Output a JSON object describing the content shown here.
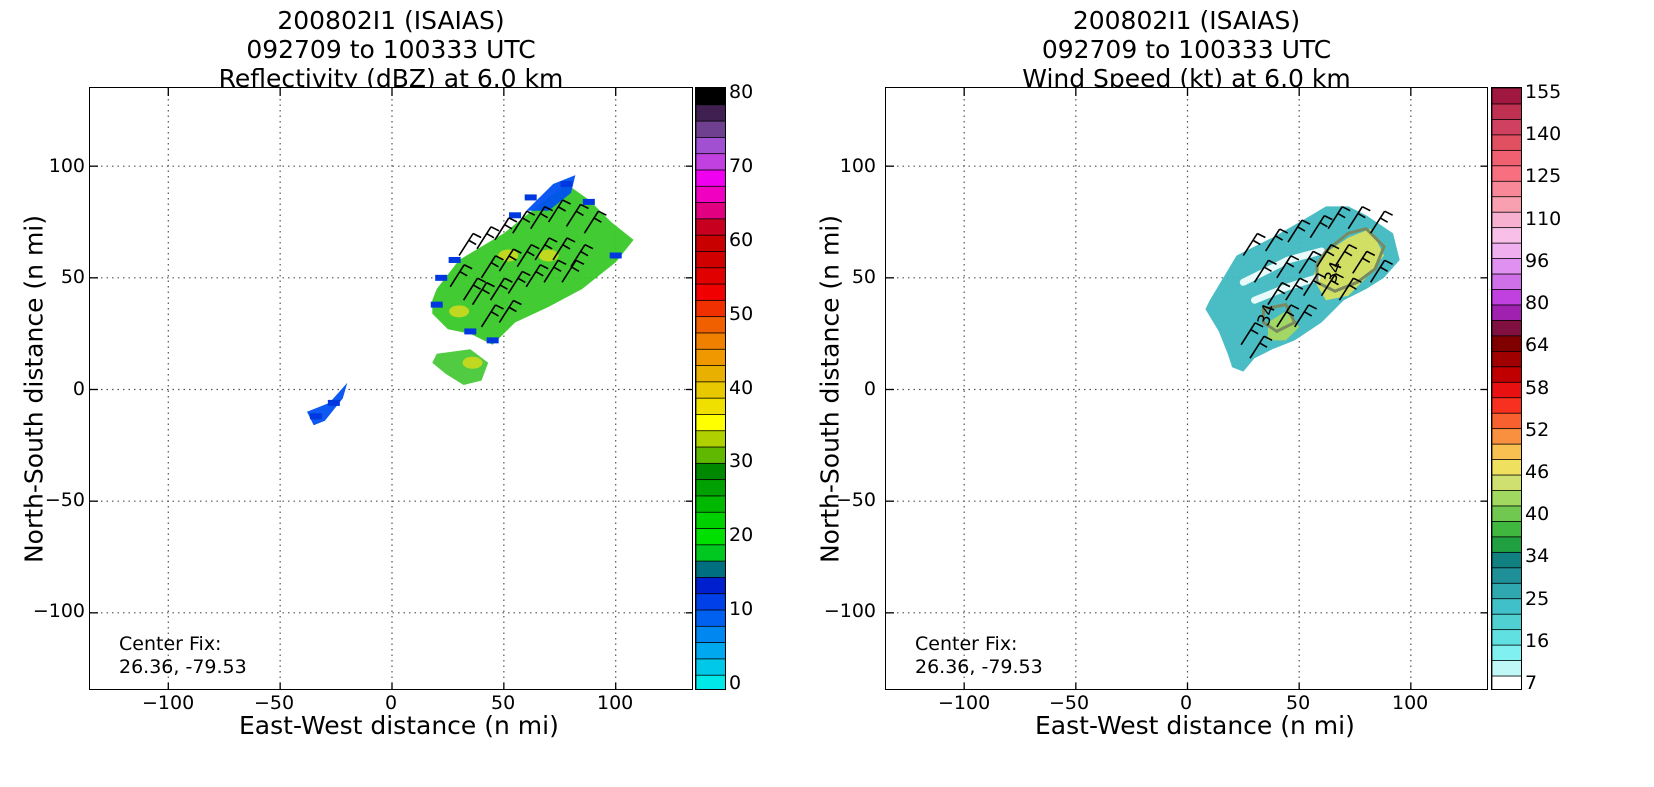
{
  "panels": [
    {
      "title_line1": "200802I1 (ISAIAS)",
      "title_line2": "092709 to 100333 UTC",
      "title_line3": "Reflectivity (dBZ) at 6.0 km",
      "xlabel": "East-West distance (n mi)",
      "ylabel": "North-South distance (n mi)",
      "center_fix_label": "Center Fix:",
      "center_fix_coords": "26.36, -79.53",
      "colorbar_ticks": [
        "0",
        "10",
        "20",
        "30",
        "40",
        "50",
        "60",
        "70",
        "80"
      ],
      "colorbar_colors": [
        "#00e8e8",
        "#00c8e8",
        "#00a8f0",
        "#0088f0",
        "#0060f0",
        "#0040e8",
        "#0020d0",
        "#007080",
        "#00c820",
        "#00e000",
        "#00d000",
        "#00b800",
        "#00a000",
        "#008800",
        "#60b800",
        "#b0d000",
        "#ffff00",
        "#f0e000",
        "#e8c800",
        "#e8b000",
        "#f09800",
        "#f08000",
        "#f06000",
        "#f03000",
        "#f00000",
        "#e00000",
        "#d00000",
        "#c80000",
        "#c80020",
        "#e00080",
        "#f000c0",
        "#f000f0",
        "#c040e0",
        "#a050d0",
        "#704090",
        "#402050",
        "#000000"
      ]
    },
    {
      "title_line1": "200802I1 (ISAIAS)",
      "title_line2": "092709 to 100333 UTC",
      "title_line3": "Wind Speed (kt) at 6.0 km",
      "xlabel": "East-West distance (n mi)",
      "ylabel": "North-South distance (n mi)",
      "center_fix_label": "Center Fix:",
      "center_fix_coords": "26.36, -79.53",
      "colorbar_ticks": [
        "7",
        "16",
        "25",
        "34",
        "40",
        "46",
        "52",
        "58",
        "64",
        "80",
        "96",
        "110",
        "125",
        "140",
        "155"
      ],
      "colorbar_colors": [
        "#ffffff",
        "#c0f8f8",
        "#80f0f0",
        "#60e0e0",
        "#50d0d0",
        "#40c0c8",
        "#30a8b0",
        "#209098",
        "#108080",
        "#20a040",
        "#40b840",
        "#70c850",
        "#a0d860",
        "#d0e070",
        "#f0e060",
        "#f8c050",
        "#f89040",
        "#f86030",
        "#f83020",
        "#e81010",
        "#c00000",
        "#a00000",
        "#800000",
        "#801040",
        "#a020b0",
        "#c040e0",
        "#d070e8",
        "#e090f0",
        "#f0b0f0",
        "#f8c0e8",
        "#f8b0d0",
        "#f8a0b0",
        "#f88898",
        "#f87080",
        "#f06070",
        "#e05060",
        "#d04060",
        "#c03050",
        "#a01840"
      ],
      "contour_labels": [
        "34",
        "34"
      ]
    }
  ],
  "x_ticks": [
    "−100",
    "−50",
    "0",
    "50",
    "100"
  ],
  "y_ticks": [
    "100",
    "50",
    "0",
    "−50",
    "−100"
  ],
  "chart_data": [
    {
      "type": "heatmap",
      "title": "200802I1 (ISAIAS) 092709 to 100333 UTC Reflectivity (dBZ) at 6.0 km",
      "xlabel": "East-West distance (n mi)",
      "ylabel": "North-South distance (n mi)",
      "xlim": [
        -135,
        135
      ],
      "ylim": [
        -135,
        135
      ],
      "grid": true,
      "colorbar": {
        "label": "dBZ",
        "range": [
          0,
          80
        ],
        "ticks": [
          0,
          10,
          20,
          30,
          40,
          50,
          60,
          70,
          80
        ]
      },
      "regions": [
        {
          "name": "main echo",
          "polygon": [
            [
              20,
              45
            ],
            [
              30,
              58
            ],
            [
              50,
              70
            ],
            [
              65,
              82
            ],
            [
              78,
              92
            ],
            [
              88,
              85
            ],
            [
              98,
              75
            ],
            [
              108,
              67
            ],
            [
              100,
              57
            ],
            [
              85,
              45
            ],
            [
              70,
              37
            ],
            [
              55,
              30
            ],
            [
              45,
              20
            ],
            [
              35,
              25
            ],
            [
              25,
              27
            ],
            [
              18,
              34
            ],
            [
              18,
              40
            ]
          ],
          "value_dbz": 22
        },
        {
          "name": "southern cell",
          "polygon": [
            [
              20,
              16
            ],
            [
              35,
              18
            ],
            [
              43,
              12
            ],
            [
              40,
              4
            ],
            [
              32,
              2
            ],
            [
              24,
              7
            ],
            [
              18,
              12
            ]
          ],
          "value_dbz": 24
        },
        {
          "name": "small western echo",
          "polygon": [
            [
              -38,
              -10
            ],
            [
              -28,
              -6
            ],
            [
              -20,
              3
            ],
            [
              -22,
              -4
            ],
            [
              -30,
              -14
            ],
            [
              -35,
              -16
            ]
          ],
          "value_dbz": 12
        },
        {
          "name": "northern fringe",
          "polygon": [
            [
              60,
              80
            ],
            [
              72,
              92
            ],
            [
              82,
              96
            ],
            [
              80,
              88
            ],
            [
              70,
              80
            ]
          ],
          "value_dbz": 12
        }
      ],
      "wind_barbs": [
        [
          30,
          60
        ],
        [
          38,
          63
        ],
        [
          46,
          67
        ],
        [
          54,
          70
        ],
        [
          62,
          72
        ],
        [
          70,
          75
        ],
        [
          78,
          73
        ],
        [
          86,
          70
        ],
        [
          40,
          50
        ],
        [
          48,
          53
        ],
        [
          56,
          55
        ],
        [
          64,
          58
        ],
        [
          72,
          58
        ],
        [
          80,
          55
        ],
        [
          36,
          38
        ],
        [
          44,
          40
        ],
        [
          52,
          43
        ],
        [
          60,
          46
        ],
        [
          68,
          48
        ],
        [
          76,
          48
        ],
        [
          40,
          28
        ],
        [
          48,
          30
        ],
        [
          26,
          46
        ],
        [
          32,
          40
        ]
      ],
      "annotations": [
        "Center Fix:",
        "26.36, -79.53"
      ]
    },
    {
      "type": "heatmap",
      "title": "200802I1 (ISAIAS) 092709 to 100333 UTC Wind Speed (kt) at 6.0 km",
      "xlabel": "East-West distance (n mi)",
      "ylabel": "North-South distance (n mi)",
      "xlim": [
        -135,
        135
      ],
      "ylim": [
        -135,
        135
      ],
      "grid": true,
      "colorbar": {
        "label": "kt",
        "range": [
          7,
          160
        ],
        "ticks": [
          7,
          16,
          25,
          34,
          40,
          46,
          52,
          58,
          64,
          80,
          96,
          110,
          125,
          140,
          155
        ]
      },
      "regions": [
        {
          "name": "wind field",
          "polygon": [
            [
              10,
              40
            ],
            [
              22,
              60
            ],
            [
              38,
              68
            ],
            [
              52,
              76
            ],
            [
              62,
              82
            ],
            [
              72,
              82
            ],
            [
              80,
              78
            ],
            [
              92,
              70
            ],
            [
              95,
              58
            ],
            [
              88,
              50
            ],
            [
              80,
              45
            ],
            [
              70,
              40
            ],
            [
              60,
              30
            ],
            [
              48,
              22
            ],
            [
              38,
              18
            ],
            [
              30,
              14
            ],
            [
              25,
              8
            ],
            [
              20,
              10
            ],
            [
              18,
              16
            ],
            [
              14,
              26
            ],
            [
              8,
              36
            ]
          ],
          "value_kt": 22
        },
        {
          "name": "strong winds",
          "polygon": [
            [
              60,
              60
            ],
            [
              72,
              68
            ],
            [
              82,
              72
            ],
            [
              88,
              60
            ],
            [
              80,
              50
            ],
            [
              72,
              42
            ],
            [
              62,
              40
            ],
            [
              56,
              50
            ]
          ],
          "value_kt": 42
        },
        {
          "name": "southern strong winds",
          "polygon": [
            [
              36,
              30
            ],
            [
              44,
              35
            ],
            [
              50,
              28
            ],
            [
              44,
              22
            ],
            [
              36,
              22
            ]
          ],
          "value_kt": 40
        }
      ],
      "contours": [
        {
          "level_kt": 34,
          "labels": [
            "34",
            "34"
          ]
        }
      ],
      "wind_barbs": [
        [
          25,
          60
        ],
        [
          35,
          62
        ],
        [
          45,
          66
        ],
        [
          55,
          68
        ],
        [
          63,
          72
        ],
        [
          72,
          72
        ],
        [
          82,
          70
        ],
        [
          30,
          48
        ],
        [
          40,
          50
        ],
        [
          50,
          52
        ],
        [
          58,
          55
        ],
        [
          66,
          55
        ],
        [
          74,
          52
        ],
        [
          82,
          48
        ],
        [
          36,
          38
        ],
        [
          44,
          40
        ],
        [
          52,
          42
        ],
        [
          60,
          42
        ],
        [
          68,
          40
        ],
        [
          40,
          28
        ],
        [
          48,
          28
        ],
        [
          24,
          20
        ],
        [
          28,
          14
        ]
      ],
      "annotations": [
        "Center Fix:",
        "26.36, -79.53",
        "34",
        "34"
      ]
    }
  ]
}
